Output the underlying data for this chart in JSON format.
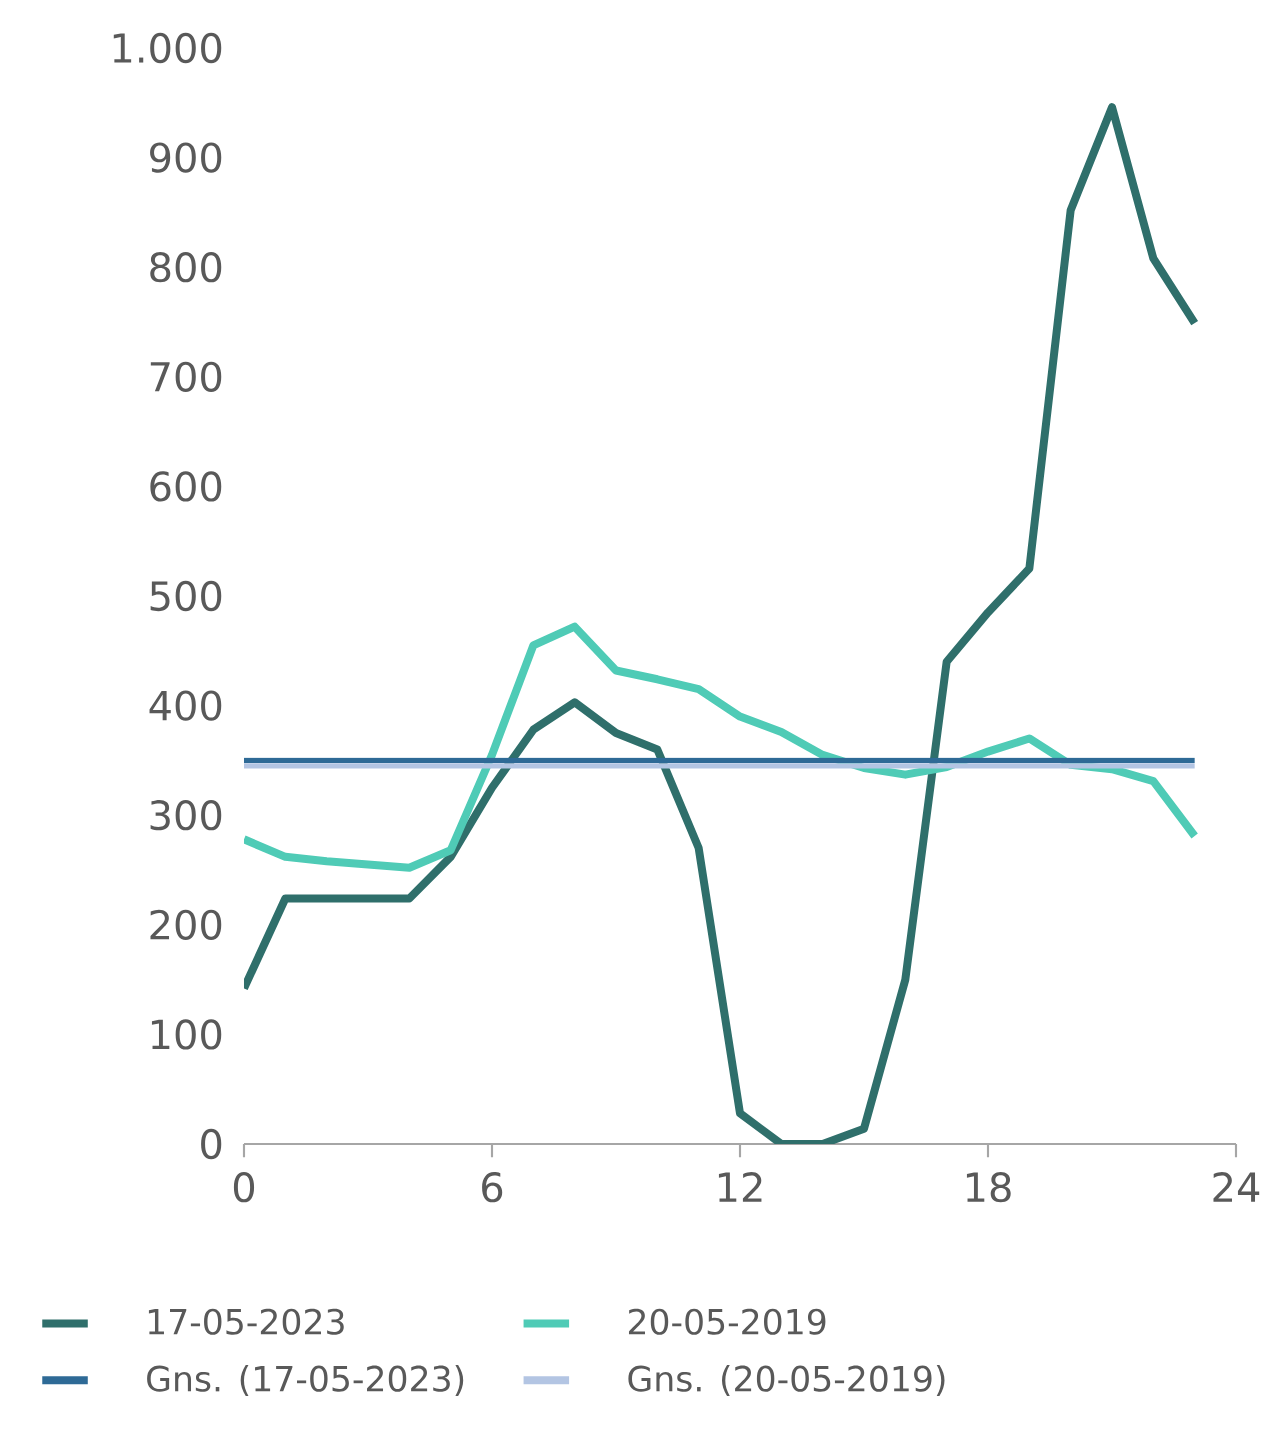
{
  "chart_data": {
    "type": "line",
    "x": [
      0,
      1,
      2,
      3,
      4,
      5,
      6,
      7,
      8,
      9,
      10,
      11,
      12,
      13,
      14,
      15,
      16,
      17,
      18,
      19,
      20,
      21,
      22,
      23
    ],
    "series": [
      {
        "name": "17-05-2023",
        "color": "#2f6f6b",
        "values": [
          142,
          224,
          224,
          224,
          224,
          262,
          325,
          378,
          403,
          375,
          360,
          270,
          28,
          0,
          0,
          14,
          150,
          440,
          485,
          525,
          852,
          946,
          808,
          749
        ]
      },
      {
        "name": "20-05-2019",
        "color": "#4fcbb6",
        "values": [
          278,
          262,
          258,
          255,
          252,
          268,
          355,
          455,
          472,
          432,
          424,
          415,
          390,
          376,
          355,
          343,
          337,
          344,
          358,
          370,
          346,
          342,
          331,
          281
        ]
      },
      {
        "name": "Gns. (17-05-2023)",
        "color": "#2e6a96",
        "values": [
          350,
          350,
          350,
          350,
          350,
          350,
          350,
          350,
          350,
          350,
          350,
          350,
          350,
          350,
          350,
          350,
          350,
          350,
          350,
          350,
          350,
          350,
          350,
          350
        ]
      },
      {
        "name": "Gns. (20-05-2019)",
        "color": "#b3c5e3",
        "values": [
          345,
          345,
          345,
          345,
          345,
          345,
          345,
          345,
          345,
          345,
          345,
          345,
          345,
          345,
          345,
          345,
          345,
          345,
          345,
          345,
          345,
          345,
          345,
          345
        ]
      }
    ],
    "xlim": [
      0,
      24
    ],
    "xticks": [
      0,
      6,
      12,
      18,
      24
    ],
    "ylim": [
      0,
      1000
    ],
    "yticks": [
      0,
      100,
      200,
      300,
      400,
      500,
      600,
      700,
      800,
      900,
      {
        "value": 1000,
        "label": "1.000"
      }
    ],
    "legend": "bottom",
    "marker": "none",
    "line_style": "solid"
  }
}
